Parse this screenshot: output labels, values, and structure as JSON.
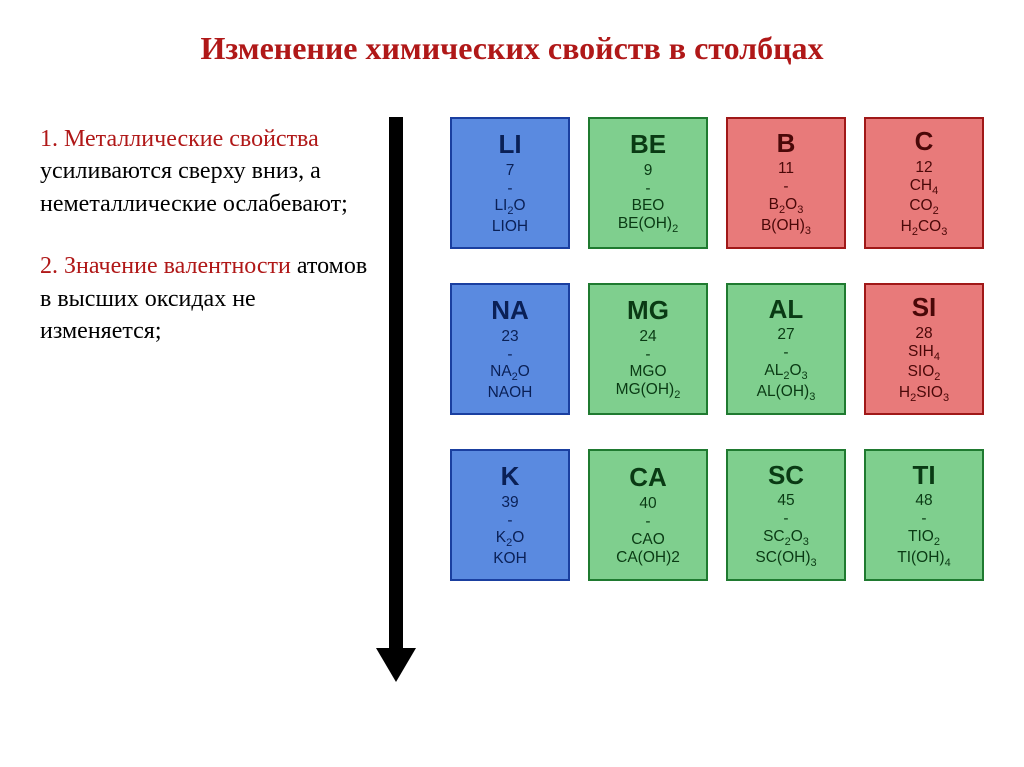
{
  "title": "Изменение химических свойств в столбцах",
  "paragraphs": [
    {
      "num": "1.",
      "red": "Металлические свойства ",
      "black": "усиливаются сверху вниз, а неметаллические ослабевают;"
    },
    {
      "num": "2.",
      "red": "Значение валентности ",
      "black": "атомов в высших оксидах не изменяется;"
    }
  ],
  "colors": {
    "blue": {
      "bg": "#5a8ae0",
      "border": "#1a3fa0",
      "text": "#0a2056"
    },
    "green": {
      "bg": "#7fcf8e",
      "border": "#1f7a30",
      "text": "#0a3a14"
    },
    "red": {
      "bg": "#e87a7a",
      "border": "#a01818",
      "text": "#4a0808"
    }
  },
  "grid": [
    [
      {
        "c": "blue",
        "sym": "LI",
        "lines": [
          "7",
          "-",
          "LI|2|O",
          "LIOH"
        ]
      },
      {
        "c": "green",
        "sym": "BE",
        "lines": [
          "9",
          "-",
          "BEO",
          "BE(OH)|2|"
        ]
      },
      {
        "c": "red",
        "sym": "B",
        "lines": [
          "11",
          "-",
          "B|2|O|3|",
          "B(OH)|3|"
        ]
      },
      {
        "c": "red",
        "sym": "C",
        "lines": [
          "12",
          "CH|4|",
          "CO|2|",
          "H|2|CO|3|"
        ]
      }
    ],
    [
      {
        "c": "blue",
        "sym": "NA",
        "lines": [
          "23",
          "-",
          "NA|2|O",
          "NAOH"
        ]
      },
      {
        "c": "green",
        "sym": "MG",
        "lines": [
          "24",
          "-",
          "MGO",
          "MG(OH)|2|"
        ]
      },
      {
        "c": "green",
        "sym": "AL",
        "lines": [
          "27",
          "-",
          "AL|2|O|3|",
          "AL(OH)|3|"
        ]
      },
      {
        "c": "red",
        "sym": "SI",
        "lines": [
          "28",
          "SIH|4|",
          "SIO|2|",
          "H|2|SIO|3|"
        ]
      }
    ],
    [
      {
        "c": "blue",
        "sym": "K",
        "lines": [
          "39",
          "-",
          "K|2|O",
          "KOH"
        ]
      },
      {
        "c": "green",
        "sym": "CA",
        "lines": [
          "40",
          "-",
          "CAO",
          "CA(OH)2"
        ]
      },
      {
        "c": "green",
        "sym": "SC",
        "lines": [
          "45",
          "-",
          "SC|2|O|3|",
          "SC(OH)|3|"
        ]
      },
      {
        "c": "green",
        "sym": "TI",
        "lines": [
          "48",
          "-",
          "TIO|2|",
          "TI(OH)|4|"
        ]
      }
    ]
  ]
}
